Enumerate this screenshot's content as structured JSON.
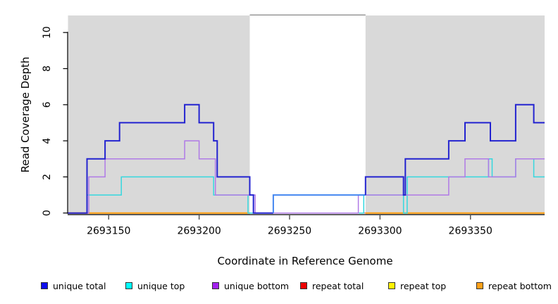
{
  "chart_data": {
    "type": "line",
    "subtype": "step-coverage-plot",
    "title": "",
    "xlabel": "Coordinate in Reference Genome",
    "ylabel": "Read Coverage Depth",
    "xlim": [
      2693127.5,
      2693391
    ],
    "ylim": [
      0,
      10.94
    ],
    "x_ticks": [
      2693150,
      2693200,
      2693250,
      2693300,
      2693350
    ],
    "y_ticks": [
      0,
      2,
      4,
      6,
      8,
      10
    ],
    "grid": false,
    "legend_position": "bottom",
    "background_regions": [
      {
        "name": "unique-left",
        "from": 2693127.5,
        "to": 2693228,
        "fill": "#d9d9d9"
      },
      {
        "name": "gap",
        "from": 2693228,
        "to": 2693292,
        "fill": "#ffffff",
        "top_border": "#909090"
      },
      {
        "name": "unique-right",
        "from": 2693292,
        "to": 2693391,
        "fill": "#d9d9d9"
      }
    ],
    "series": [
      {
        "name": "repeat total",
        "width": 1.2,
        "segments": [
          {
            "color": "#e0506e",
            "width": 1.2,
            "steps": [
              [
                2693127.5,
                0
              ],
              [
                2693391,
                0
              ]
            ]
          }
        ]
      },
      {
        "name": "repeat top",
        "width": 1.2,
        "note": "hidden beneath repeat bottom line at depth 0",
        "segments": [
          {
            "color": "#ffee00",
            "width": 1.2,
            "steps": [
              [
                2693127.5,
                0
              ],
              [
                2693228,
                0
              ]
            ]
          },
          {
            "color": "#ffee00",
            "width": 1.2,
            "steps": [
              [
                2693292,
                0
              ],
              [
                2693391,
                0
              ]
            ]
          }
        ]
      },
      {
        "name": "repeat bottom",
        "width": 2,
        "segments": [
          {
            "color": "#ff9d0a",
            "width": 2,
            "steps": [
              [
                2693127.5,
                0
              ],
              [
                2693228,
                0
              ]
            ]
          },
          {
            "color": "#ff9d0a",
            "width": 2,
            "steps": [
              [
                2693292,
                0
              ],
              [
                2693391,
                0
              ]
            ]
          }
        ]
      },
      {
        "name": "unique top",
        "width": 1.5,
        "segments": [
          {
            "color": "#35d8de",
            "width": 1.5,
            "steps": [
              [
                2693127.5,
                0
              ],
              [
                2693138,
                1
              ],
              [
                2693157,
                2
              ],
              [
                2693208,
                1
              ],
              [
                2693227,
                0
              ],
              [
                2693291,
                1
              ],
              [
                2693313,
                0
              ],
              [
                2693315,
                2
              ],
              [
                2693360,
                3
              ],
              [
                2693362,
                2
              ],
              [
                2693375,
                3
              ],
              [
                2693385,
                2
              ],
              [
                2693391,
                2
              ]
            ]
          }
        ]
      },
      {
        "name": "unique bottom",
        "width": 1.5,
        "segments": [
          {
            "color": "#b07ae6",
            "width": 1.5,
            "steps": [
              [
                2693127.5,
                0
              ],
              [
                2693139,
                2
              ],
              [
                2693148,
                3
              ],
              [
                2693192,
                4
              ],
              [
                2693200,
                3
              ],
              [
                2693209,
                1
              ],
              [
                2693231,
                0
              ],
              [
                2693288,
                1
              ],
              [
                2693338,
                2
              ],
              [
                2693347,
                3
              ],
              [
                2693360,
                2
              ],
              [
                2693375,
                3
              ],
              [
                2693391,
                3
              ]
            ]
          }
        ]
      },
      {
        "name": "unique total",
        "width": 2,
        "segments": [
          {
            "color": "#2323d0",
            "width": 2,
            "steps": [
              [
                2693127.5,
                0
              ],
              [
                2693138,
                3
              ],
              [
                2693148,
                4
              ],
              [
                2693156,
                5
              ],
              [
                2693192,
                6
              ],
              [
                2693200,
                5
              ],
              [
                2693208,
                4
              ],
              [
                2693210,
                2
              ],
              [
                2693228,
                1
              ],
              [
                2693230,
                0
              ],
              [
                2693241,
                0
              ]
            ]
          },
          {
            "color": "#4487f0",
            "width": 2,
            "steps": [
              [
                2693241,
                0
              ],
              [
                2693241,
                1
              ],
              [
                2693292,
                1
              ]
            ]
          },
          {
            "color": "#2323d0",
            "width": 2,
            "steps": [
              [
                2693292,
                1
              ],
              [
                2693292,
                2
              ],
              [
                2693313,
                1
              ],
              [
                2693314,
                3
              ],
              [
                2693338,
                4
              ],
              [
                2693347,
                5
              ],
              [
                2693361,
                4
              ],
              [
                2693375,
                6
              ],
              [
                2693385,
                5
              ],
              [
                2693391,
                5
              ]
            ]
          }
        ]
      }
    ]
  },
  "legend": {
    "items": [
      {
        "label": "unique total",
        "color": "#0d0dee"
      },
      {
        "label": "unique top",
        "color": "#00ffff"
      },
      {
        "label": "unique bottom",
        "color": "#a321f0"
      },
      {
        "label": "repeat total",
        "color": "#ee0000"
      },
      {
        "label": "repeat top",
        "color": "#fff200"
      },
      {
        "label": "repeat bottom",
        "color": "#ffa018"
      }
    ]
  }
}
